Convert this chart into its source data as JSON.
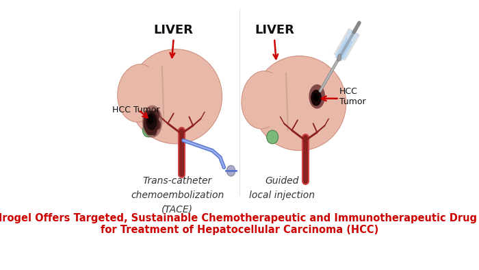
{
  "title_line1": "New Hydrogel Offers Targeted, Sustainable Chemotherapeutic and Immunotherapeutic Drug Delivery",
  "title_line2": "for Treatment of Hepatocellular Carcinoma (HCC)",
  "title_color": "#cc0000",
  "title_fontsize": 10.5,
  "title_fontweight": "bold",
  "bg_color": "#ffffff",
  "left_label_liver": "LIVER",
  "right_label_liver": "LIVER",
  "left_label_tumor": "HCC Tumor",
  "right_label_tumor": "HCC\nTumor",
  "left_caption": "Trans-catheter\nchemoembolization\n(TACE)",
  "right_caption": "Guided\nlocal injection",
  "liver_color": "#e8b8a8",
  "liver_edge": "#d09080",
  "liver_color2": "#dda898",
  "vessel_color": "#8B2020",
  "vessel_color2": "#cc4444",
  "gallbladder_color": "#7ab87a",
  "gallbladder_edge": "#508050",
  "tumor_dark": "#1a0a0a",
  "tumor_mid": "#3a1a1a",
  "tumor_halo": "#6a3a3a",
  "catheter_color": "#5577cc",
  "catheter_highlight": "#99aaee",
  "balloon_color": "#aaaacc",
  "balloon_edge": "#888899",
  "needle_color": "#aaaaaa",
  "needle_highlight": "#cccccc",
  "syringe_body": "#ccddee",
  "syringe_plunger": "#99aabb",
  "arrow_color": "#cc0000",
  "label_color": "#111111",
  "liver_label_fontsize": 13,
  "liver_label_fontweight": "bold",
  "caption_fontsize": 10,
  "tumor_label_fontsize": 9,
  "figsize": [
    7.0,
    3.94
  ],
  "dpi": 100
}
